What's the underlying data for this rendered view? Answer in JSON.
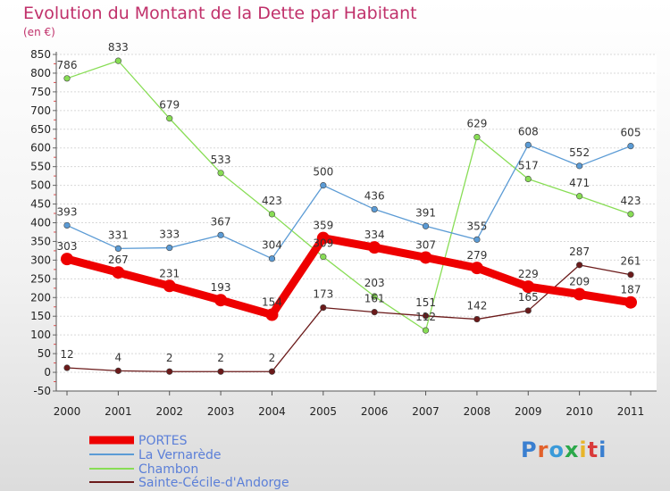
{
  "title": "Evolution du Montant de la Dette par Habitant",
  "subtitle": "(en €)",
  "logo_text": "Proxiti",
  "chart_data": {
    "type": "line",
    "title": "Evolution du Montant de la Dette par Habitant",
    "subtitle": "(en €)",
    "x": [
      "2000",
      "2001",
      "2002",
      "2003",
      "2004",
      "2005",
      "2006",
      "2007",
      "2008",
      "2009",
      "2010",
      "2011"
    ],
    "ylim": [
      -50,
      850
    ],
    "yticks": [
      -50,
      0,
      50,
      100,
      150,
      200,
      250,
      300,
      350,
      400,
      450,
      500,
      550,
      600,
      650,
      700,
      750,
      800,
      850
    ],
    "grid": "horizontal",
    "legend": "bottom-left",
    "series": [
      {
        "name": "PORTES",
        "color": "#ee0000",
        "values": [
          303,
          267,
          231,
          193,
          154,
          359,
          334,
          307,
          279,
          229,
          209,
          187
        ]
      },
      {
        "name": "La Vernarède",
        "color": "#5b9bd5",
        "values": [
          393,
          331,
          333,
          367,
          304,
          500,
          436,
          391,
          355,
          608,
          552,
          605
        ]
      },
      {
        "name": "Chambon",
        "color": "#88dd55",
        "values": [
          786,
          833,
          679,
          533,
          423,
          309,
          203,
          112,
          629,
          517,
          471,
          423
        ]
      },
      {
        "name": "Sainte-Cécile-d'Andorge",
        "color": "#6b1a1a",
        "values": [
          12,
          4,
          2,
          2,
          2,
          173,
          161,
          151,
          142,
          165,
          287,
          261
        ]
      }
    ]
  }
}
